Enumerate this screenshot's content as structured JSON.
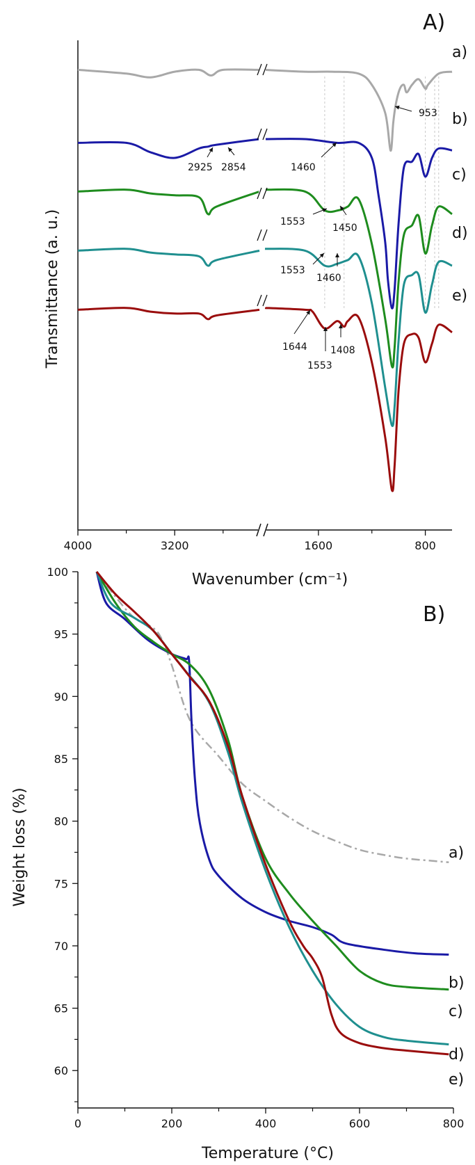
{
  "figure": {
    "panels": [
      {
        "id": "A",
        "label": "A)"
      },
      {
        "id": "B",
        "label": "B)"
      }
    ]
  },
  "colors": {
    "a": "#a8a8a8",
    "b": "#1a1aa6",
    "c": "#1e8c1e",
    "d": "#1f8f8f",
    "e": "#9a0d0d",
    "axis": "#111111",
    "guide": "#c8c8c8"
  },
  "chart_data": [
    {
      "type": "line",
      "panel_label": "A)",
      "xlabel": "Wavenumber (cm⁻¹)",
      "ylabel": "Transmittance (a. u.)",
      "x_axis_reversed": true,
      "axis_break": "between 2500 and 2000 cm⁻¹",
      "xticks": [
        "4000",
        "3200",
        "1600",
        "800"
      ],
      "grid": false,
      "series": [
        {
          "key": "a",
          "name": "a)",
          "color": "#a8a8a8",
          "points": [
            [
              4000,
              0.98
            ],
            [
              3600,
              0.96
            ],
            [
              3400,
              0.94
            ],
            [
              3200,
              0.97
            ],
            [
              3000,
              0.98
            ],
            [
              2900,
              0.95
            ],
            [
              2800,
              0.98
            ],
            [
              2500,
              0.98
            ],
            [
              2000,
              0.98
            ],
            [
              1700,
              0.97
            ],
            [
              1500,
              0.97
            ],
            [
              1300,
              0.96
            ],
            [
              1200,
              0.9
            ],
            [
              1100,
              0.75
            ],
            [
              1060,
              0.55
            ],
            [
              1040,
              0.7
            ],
            [
              1020,
              0.8
            ],
            [
              990,
              0.88
            ],
            [
              960,
              0.9
            ],
            [
              940,
              0.86
            ],
            [
              900,
              0.9
            ],
            [
              850,
              0.93
            ],
            [
              800,
              0.88
            ],
            [
              780,
              0.9
            ],
            [
              700,
              0.96
            ],
            [
              600,
              0.97
            ]
          ]
        },
        {
          "key": "b",
          "name": "b)",
          "color": "#1a1aa6",
          "points": [
            [
              4000,
              0.98
            ],
            [
              3600,
              0.98
            ],
            [
              3400,
              0.93
            ],
            [
              3200,
              0.9
            ],
            [
              3000,
              0.95
            ],
            [
              2925,
              0.96
            ],
            [
              2854,
              0.97
            ],
            [
              2500,
              1.0
            ],
            [
              2000,
              1.0
            ],
            [
              1700,
              1.0
            ],
            [
              1460,
              0.98
            ],
            [
              1300,
              0.98
            ],
            [
              1200,
              0.9
            ],
            [
              1150,
              0.7
            ],
            [
              1100,
              0.45
            ],
            [
              1080,
              0.25
            ],
            [
              1050,
              0.1
            ],
            [
              1030,
              0.2
            ],
            [
              1000,
              0.55
            ],
            [
              960,
              0.85
            ],
            [
              900,
              0.88
            ],
            [
              850,
              0.92
            ],
            [
              800,
              0.8
            ],
            [
              750,
              0.9
            ],
            [
              700,
              0.95
            ],
            [
              600,
              0.94
            ]
          ]
        },
        {
          "key": "c",
          "name": "c)",
          "color": "#1e8c1e",
          "points": [
            [
              4000,
              0.98
            ],
            [
              3600,
              0.99
            ],
            [
              3400,
              0.97
            ],
            [
              3200,
              0.96
            ],
            [
              3000,
              0.95
            ],
            [
              2925,
              0.86
            ],
            [
              2854,
              0.9
            ],
            [
              2500,
              0.98
            ],
            [
              2000,
              0.99
            ],
            [
              1700,
              0.98
            ],
            [
              1553,
              0.88
            ],
            [
              1450,
              0.88
            ],
            [
              1380,
              0.9
            ],
            [
              1300,
              0.94
            ],
            [
              1200,
              0.7
            ],
            [
              1100,
              0.3
            ],
            [
              1050,
              0.05
            ],
            [
              1030,
              0.15
            ],
            [
              1000,
              0.5
            ],
            [
              960,
              0.75
            ],
            [
              900,
              0.8
            ],
            [
              850,
              0.85
            ],
            [
              800,
              0.65
            ],
            [
              750,
              0.8
            ],
            [
              700,
              0.9
            ],
            [
              600,
              0.86
            ]
          ]
        },
        {
          "key": "d",
          "name": "d)",
          "color": "#1f8f8f",
          "points": [
            [
              4000,
              0.98
            ],
            [
              3600,
              0.99
            ],
            [
              3400,
              0.97
            ],
            [
              3200,
              0.96
            ],
            [
              3000,
              0.95
            ],
            [
              2925,
              0.9
            ],
            [
              2854,
              0.93
            ],
            [
              2500,
              0.98
            ],
            [
              2000,
              0.99
            ],
            [
              1700,
              0.98
            ],
            [
              1553,
              0.9
            ],
            [
              1460,
              0.91
            ],
            [
              1380,
              0.93
            ],
            [
              1300,
              0.95
            ],
            [
              1200,
              0.7
            ],
            [
              1100,
              0.25
            ],
            [
              1050,
              0.05
            ],
            [
              1030,
              0.15
            ],
            [
              1000,
              0.5
            ],
            [
              960,
              0.8
            ],
            [
              900,
              0.85
            ],
            [
              850,
              0.85
            ],
            [
              800,
              0.65
            ],
            [
              750,
              0.8
            ],
            [
              700,
              0.92
            ],
            [
              600,
              0.9
            ]
          ]
        },
        {
          "key": "e",
          "name": "e)",
          "color": "#9a0d0d",
          "points": [
            [
              4000,
              0.98
            ],
            [
              3600,
              0.99
            ],
            [
              3400,
              0.97
            ],
            [
              3200,
              0.96
            ],
            [
              3000,
              0.96
            ],
            [
              2925,
              0.93
            ],
            [
              2854,
              0.95
            ],
            [
              2500,
              0.98
            ],
            [
              2000,
              0.99
            ],
            [
              1700,
              0.98
            ],
            [
              1644,
              0.97
            ],
            [
              1553,
              0.88
            ],
            [
              1460,
              0.92
            ],
            [
              1408,
              0.89
            ],
            [
              1380,
              0.92
            ],
            [
              1300,
              0.94
            ],
            [
              1200,
              0.7
            ],
            [
              1100,
              0.3
            ],
            [
              1050,
              0.02
            ],
            [
              1030,
              0.15
            ],
            [
              1000,
              0.55
            ],
            [
              960,
              0.8
            ],
            [
              900,
              0.85
            ],
            [
              850,
              0.83
            ],
            [
              800,
              0.7
            ],
            [
              750,
              0.8
            ],
            [
              700,
              0.9
            ],
            [
              600,
              0.86
            ]
          ]
        }
      ],
      "annotations": [
        {
          "text": "953",
          "series": "a"
        },
        {
          "text": "2925",
          "series": "b"
        },
        {
          "text": "2854",
          "series": "b"
        },
        {
          "text": "1460",
          "series": "b"
        },
        {
          "text": "1553",
          "series": "c"
        },
        {
          "text": "1450",
          "series": "c"
        },
        {
          "text": "1553",
          "series": "d"
        },
        {
          "text": "1460",
          "series": "d"
        },
        {
          "text": "1644",
          "series": "e"
        },
        {
          "text": "1553",
          "series": "e"
        },
        {
          "text": "1408",
          "series": "e"
        }
      ]
    },
    {
      "type": "line",
      "panel_label": "B)",
      "xlabel": "Temperature (°C)",
      "ylabel": "Weight loss (%)",
      "xlim": [
        0,
        800
      ],
      "ylim": [
        57,
        100
      ],
      "xticks": [
        "0",
        "200",
        "400",
        "600",
        "800"
      ],
      "yticks": [
        "60",
        "65",
        "70",
        "75",
        "80",
        "85",
        "90",
        "95",
        "100"
      ],
      "grid": false,
      "series": [
        {
          "key": "a",
          "name": "a)",
          "color": "#a8a8a8",
          "dash": "dashdot",
          "points": [
            [
              40,
              100
            ],
            [
              80,
              98
            ],
            [
              120,
              96.3
            ],
            [
              160,
              95.5
            ],
            [
              180,
              94.5
            ],
            [
              200,
              92.5
            ],
            [
              240,
              88
            ],
            [
              300,
              85.2
            ],
            [
              350,
              83.0
            ],
            [
              400,
              81.6
            ],
            [
              450,
              80.3
            ],
            [
              500,
              79.2
            ],
            [
              550,
              78.4
            ],
            [
              600,
              77.7
            ],
            [
              650,
              77.3
            ],
            [
              700,
              77.0
            ],
            [
              760,
              76.8
            ],
            [
              790,
              76.7
            ]
          ]
        },
        {
          "key": "b",
          "name": "b)",
          "color": "#1a1aa6",
          "dash": "solid",
          "points": [
            [
              40,
              100
            ],
            [
              60,
              97.5
            ],
            [
              100,
              96.2
            ],
            [
              150,
              94.5
            ],
            [
              200,
              93.4
            ],
            [
              230,
              93.0
            ],
            [
              237,
              92.8
            ],
            [
              242,
              88
            ],
            [
              250,
              83
            ],
            [
              260,
              79.8
            ],
            [
              280,
              76.9
            ],
            [
              300,
              75.6
            ],
            [
              350,
              73.8
            ],
            [
              400,
              72.7
            ],
            [
              450,
              72.0
            ],
            [
              500,
              71.5
            ],
            [
              540,
              70.9
            ],
            [
              570,
              70.2
            ],
            [
              650,
              69.7
            ],
            [
              720,
              69.4
            ],
            [
              790,
              69.3
            ]
          ]
        },
        {
          "key": "c",
          "name": "c)",
          "color": "#1e8c1e",
          "dash": "solid",
          "points": [
            [
              40,
              100
            ],
            [
              80,
              97.5
            ],
            [
              120,
              95.6
            ],
            [
              160,
              94.4
            ],
            [
              200,
              93.4
            ],
            [
              240,
              92.5
            ],
            [
              280,
              90.5
            ],
            [
              320,
              86.5
            ],
            [
              350,
              82.0
            ],
            [
              400,
              77.0
            ],
            [
              450,
              74.2
            ],
            [
              500,
              72.0
            ],
            [
              550,
              70.0
            ],
            [
              600,
              68.0
            ],
            [
              650,
              67.0
            ],
            [
              700,
              66.7
            ],
            [
              790,
              66.5
            ]
          ]
        },
        {
          "key": "d",
          "name": "d)",
          "color": "#1f8f8f",
          "dash": "solid",
          "points": [
            [
              40,
              100
            ],
            [
              70,
              97.5
            ],
            [
              120,
              96.3
            ],
            [
              160,
              95.3
            ],
            [
              200,
              93.4
            ],
            [
              230,
              92.0
            ],
            [
              280,
              89.5
            ],
            [
              320,
              85.5
            ],
            [
              350,
              81.5
            ],
            [
              400,
              76.0
            ],
            [
              450,
              71.5
            ],
            [
              500,
              68.0
            ],
            [
              550,
              65.3
            ],
            [
              600,
              63.5
            ],
            [
              650,
              62.7
            ],
            [
              700,
              62.4
            ],
            [
              790,
              62.1
            ]
          ]
        },
        {
          "key": "e",
          "name": "e)",
          "color": "#9a0d0d",
          "dash": "solid",
          "points": [
            [
              40,
              100
            ],
            [
              80,
              98.2
            ],
            [
              120,
              96.8
            ],
            [
              160,
              95.3
            ],
            [
              200,
              93.4
            ],
            [
              240,
              91.5
            ],
            [
              280,
              89.6
            ],
            [
              320,
              86.0
            ],
            [
              350,
              82.0
            ],
            [
              400,
              76.5
            ],
            [
              450,
              72.0
            ],
            [
              480,
              70.0
            ],
            [
              500,
              69.0
            ],
            [
              520,
              67.5
            ],
            [
              540,
              64.5
            ],
            [
              560,
              63.0
            ],
            [
              600,
              62.2
            ],
            [
              650,
              61.8
            ],
            [
              700,
              61.6
            ],
            [
              790,
              61.3
            ]
          ]
        }
      ]
    }
  ]
}
